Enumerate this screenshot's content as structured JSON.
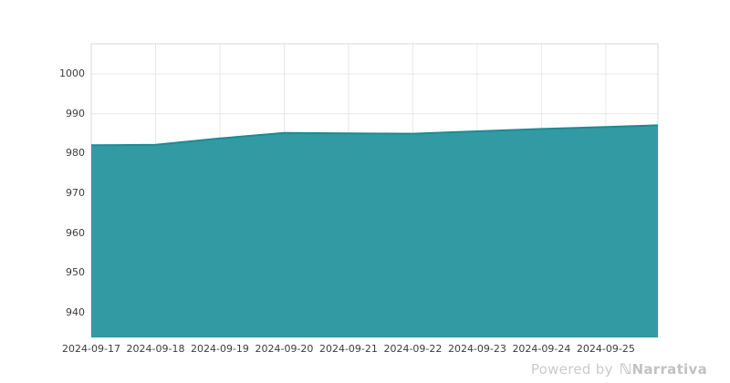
{
  "chart_data": {
    "type": "area",
    "title": "",
    "xlabel": "",
    "ylabel": "",
    "x": [
      "2024-09-17",
      "2024-09-18",
      "2024-09-19",
      "2024-09-20",
      "2024-09-21",
      "2024-09-22",
      "2024-09-23",
      "2024-09-24",
      "2024-09-25"
    ],
    "values": [
      982.1,
      982.2,
      983.8,
      985.2,
      985.1,
      985.0,
      985.6,
      986.2,
      986.7
    ],
    "right_edge_point": {
      "day_offset": 8.81,
      "value": 987.1
    },
    "yticks": [
      940,
      950,
      960,
      970,
      980,
      990,
      1000
    ],
    "y_range": [
      933.8,
      1007.6
    ],
    "x_range_days": [
      0,
      8.81
    ],
    "grid": true,
    "legend": "none",
    "colors": {
      "fill": "#329aa3",
      "line": "#1f8a94",
      "grid": "#e8e8e8",
      "plot_border": "#d9d9d9",
      "tick_text": "#3c3c3c",
      "watermark": "#cbcbcb",
      "watermark_brand": "#c2c2c2",
      "background": "#ffffff"
    }
  },
  "footer": {
    "powered_by": "Powered by",
    "logo_glyph": "ℕ",
    "brand": "Narrativa"
  }
}
